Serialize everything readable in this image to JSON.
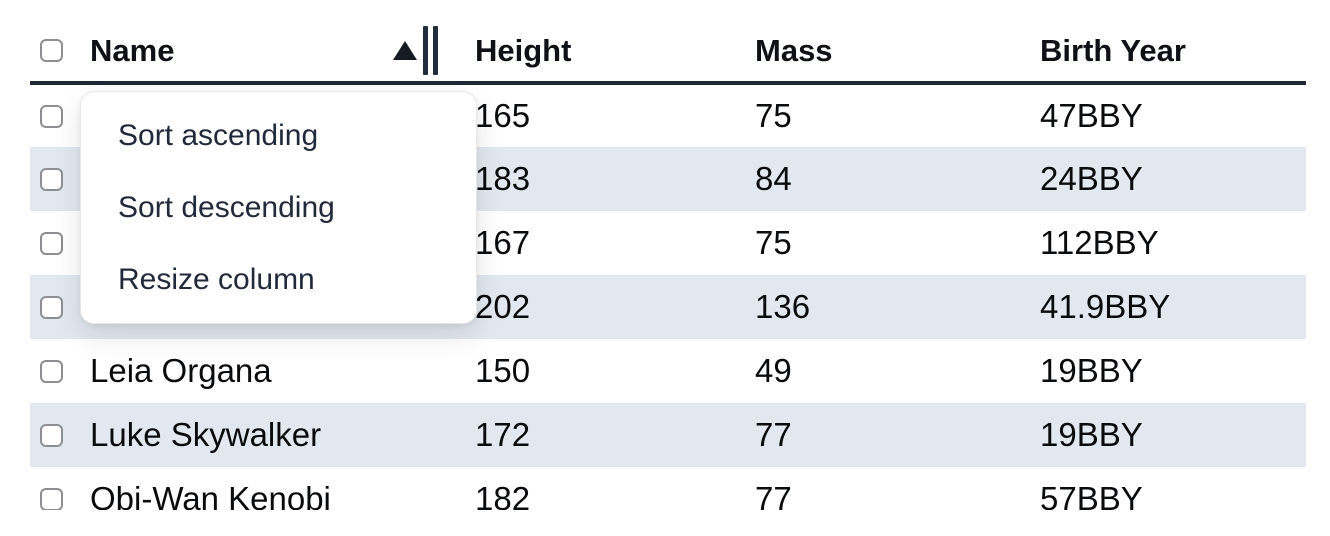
{
  "table": {
    "columns": [
      {
        "label": "Name",
        "sorted": "ascending"
      },
      {
        "label": "Height"
      },
      {
        "label": "Mass"
      },
      {
        "label": "Birth Year"
      }
    ],
    "rows": [
      {
        "name": "",
        "height": "165",
        "mass": "75",
        "birth_year": "47BBY"
      },
      {
        "name": "",
        "height": "183",
        "mass": "84",
        "birth_year": "24BBY"
      },
      {
        "name": "",
        "height": "167",
        "mass": "75",
        "birth_year": "112BBY"
      },
      {
        "name": "",
        "height": "202",
        "mass": "136",
        "birth_year": "41.9BBY"
      },
      {
        "name": "Leia Organa",
        "height": "150",
        "mass": "49",
        "birth_year": "19BBY"
      },
      {
        "name": "Luke Skywalker",
        "height": "172",
        "mass": "77",
        "birth_year": "19BBY"
      },
      {
        "name": "Obi-Wan Kenobi",
        "height": "182",
        "mass": "77",
        "birth_year": "57BBY"
      }
    ]
  },
  "context_menu": {
    "items": [
      {
        "label": "Sort ascending"
      },
      {
        "label": "Sort descending"
      },
      {
        "label": "Resize column"
      }
    ]
  },
  "icons": {
    "sort_ascending": "up-triangle",
    "column_resize": "double-vertical-bars"
  },
  "colors": {
    "row_stripe": "#e2e8f0",
    "header_border": "#1f2937",
    "menu_text": "#202a3a",
    "cell_text": "#0a0b0d",
    "checkbox_border": "#8d8d93"
  }
}
